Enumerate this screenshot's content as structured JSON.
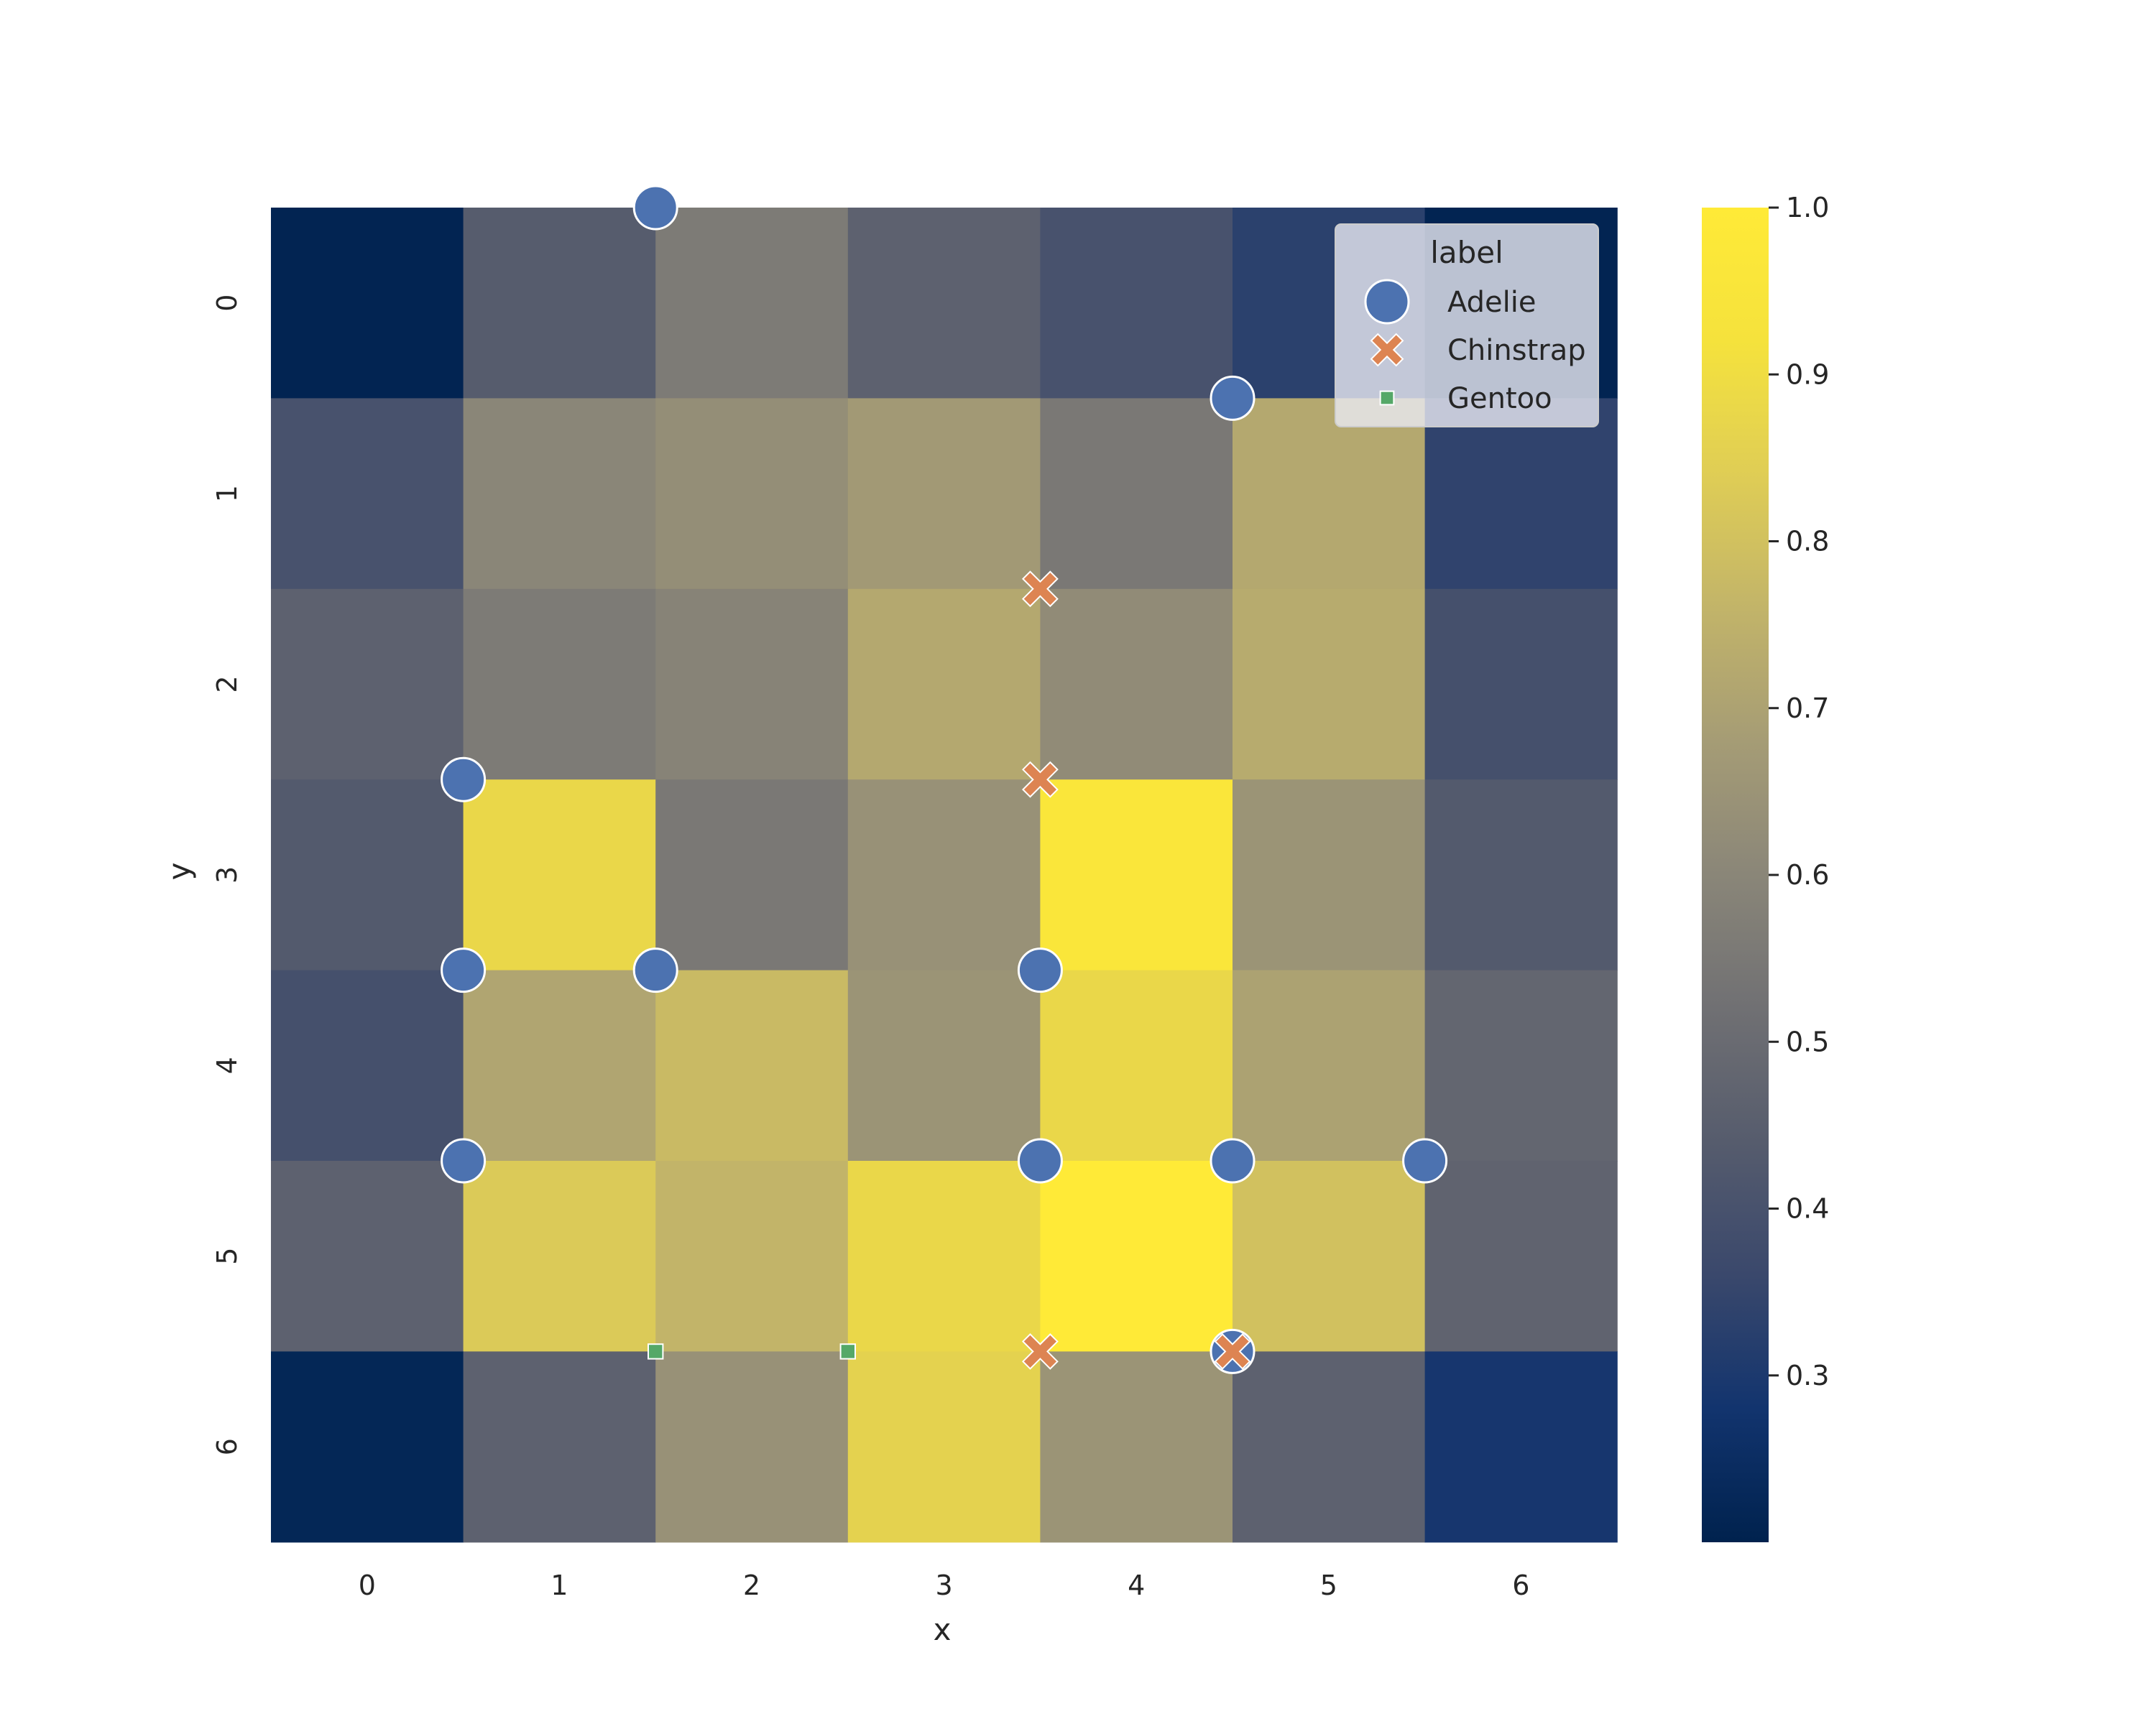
{
  "chart_data": {
    "type": "heatmap",
    "title": "",
    "xlabel": "x",
    "ylabel": "y",
    "x_ticks": [
      "0",
      "1",
      "2",
      "3",
      "4",
      "5",
      "6"
    ],
    "y_ticks": [
      "0",
      "1",
      "2",
      "3",
      "4",
      "5",
      "6"
    ],
    "cmap": "cividis",
    "vmin": 0.2,
    "vmax": 1.0,
    "colorbar_ticks": [
      "0.3",
      "0.4",
      "0.5",
      "0.6",
      "0.7",
      "0.8",
      "0.9",
      "1.0"
    ],
    "values": [
      [
        0.21,
        0.44,
        0.56,
        0.46,
        0.4,
        0.33,
        0.21
      ],
      [
        0.4,
        0.6,
        0.63,
        0.67,
        0.55,
        0.72,
        0.34
      ],
      [
        0.46,
        0.56,
        0.59,
        0.72,
        0.62,
        0.73,
        0.39
      ],
      [
        0.43,
        0.88,
        0.55,
        0.64,
        0.96,
        0.65,
        0.43
      ],
      [
        0.39,
        0.71,
        0.78,
        0.65,
        0.88,
        0.7,
        0.48
      ],
      [
        0.46,
        0.83,
        0.76,
        0.88,
        1.0,
        0.8,
        0.47
      ],
      [
        0.22,
        0.46,
        0.64,
        0.86,
        0.65,
        0.46,
        0.29
      ]
    ],
    "legend": {
      "title": "label",
      "position": "top-right",
      "entries": [
        {
          "name": "Adelie",
          "marker": "circle",
          "color": "#4c72b0"
        },
        {
          "name": "Chinstrap",
          "marker": "x",
          "color": "#dd8452"
        },
        {
          "name": "Gentoo",
          "marker": "square",
          "color": "#55a868"
        }
      ]
    },
    "scatter": [
      {
        "label": "Adelie",
        "x": 2.0,
        "y": 0.0
      },
      {
        "label": "Adelie",
        "x": 5.0,
        "y": 1.0
      },
      {
        "label": "Adelie",
        "x": 1.0,
        "y": 3.0
      },
      {
        "label": "Adelie",
        "x": 1.0,
        "y": 4.0
      },
      {
        "label": "Adelie",
        "x": 2.0,
        "y": 4.0
      },
      {
        "label": "Adelie",
        "x": 4.0,
        "y": 4.0
      },
      {
        "label": "Adelie",
        "x": 1.0,
        "y": 5.0
      },
      {
        "label": "Adelie",
        "x": 4.0,
        "y": 5.0
      },
      {
        "label": "Adelie",
        "x": 5.0,
        "y": 5.0
      },
      {
        "label": "Adelie",
        "x": 6.0,
        "y": 5.0
      },
      {
        "label": "Adelie",
        "x": 5.0,
        "y": 6.0
      },
      {
        "label": "Chinstrap",
        "x": 4.0,
        "y": 2.0
      },
      {
        "label": "Chinstrap",
        "x": 4.0,
        "y": 3.0
      },
      {
        "label": "Chinstrap",
        "x": 4.0,
        "y": 6.0
      },
      {
        "label": "Chinstrap",
        "x": 5.0,
        "y": 6.0
      },
      {
        "label": "Gentoo",
        "x": 2.0,
        "y": 6.0
      },
      {
        "label": "Gentoo",
        "x": 3.0,
        "y": 6.0
      }
    ]
  }
}
